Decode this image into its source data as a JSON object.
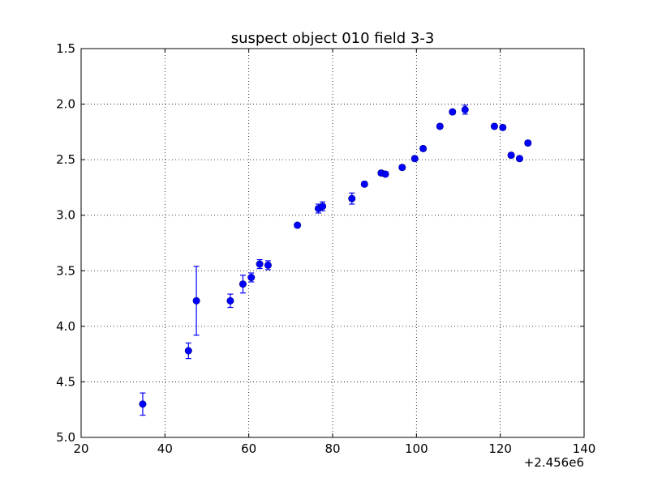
{
  "chart_data": {
    "type": "scatter",
    "title": "suspect object 010 field 3-3",
    "xlabel": "",
    "ylabel": "",
    "x_offset_label": "+2.456e6",
    "xlim": [
      20,
      140
    ],
    "ylim": [
      1.5,
      5.0
    ],
    "y_inverted": true,
    "grid": true,
    "x_ticks": [
      20,
      40,
      60,
      80,
      100,
      120,
      140
    ],
    "x_tick_labels": [
      "20",
      "40",
      "60",
      "80",
      "100",
      "120",
      "140"
    ],
    "y_ticks": [
      1.5,
      2.0,
      2.5,
      3.0,
      3.5,
      4.0,
      4.5,
      5.0
    ],
    "y_tick_labels": [
      "1.5",
      "2.0",
      "2.5",
      "3.0",
      "3.5",
      "4.0",
      "4.5",
      "5.0"
    ],
    "marker_color": "#0000ff",
    "errorbar_color": "#0000ff",
    "points": [
      {
        "x": 34.7,
        "y": 4.7,
        "err": 0.1
      },
      {
        "x": 45.6,
        "y": 4.22,
        "err": 0.07
      },
      {
        "x": 47.5,
        "y": 3.77,
        "err": 0.31
      },
      {
        "x": 55.6,
        "y": 3.77,
        "err": 0.06
      },
      {
        "x": 58.6,
        "y": 3.62,
        "err": 0.08
      },
      {
        "x": 60.6,
        "y": 3.56,
        "err": 0.04
      },
      {
        "x": 62.6,
        "y": 3.44,
        "err": 0.04
      },
      {
        "x": 64.6,
        "y": 3.45,
        "err": 0.04
      },
      {
        "x": 71.6,
        "y": 3.09,
        "err": 0.02
      },
      {
        "x": 76.6,
        "y": 2.94,
        "err": 0.04
      },
      {
        "x": 77.6,
        "y": 2.92,
        "err": 0.04
      },
      {
        "x": 84.6,
        "y": 2.85,
        "err": 0.05
      },
      {
        "x": 87.6,
        "y": 2.72,
        "err": 0.02
      },
      {
        "x": 91.6,
        "y": 2.62,
        "err": 0.02
      },
      {
        "x": 92.6,
        "y": 2.63,
        "err": 0.02
      },
      {
        "x": 96.6,
        "y": 2.57,
        "err": 0.02
      },
      {
        "x": 99.6,
        "y": 2.49,
        "err": 0.02
      },
      {
        "x": 101.6,
        "y": 2.4,
        "err": 0.02
      },
      {
        "x": 105.6,
        "y": 2.2,
        "err": 0.02
      },
      {
        "x": 108.6,
        "y": 2.07,
        "err": 0.02
      },
      {
        "x": 111.6,
        "y": 2.05,
        "err": 0.04
      },
      {
        "x": 118.6,
        "y": 2.2,
        "err": 0.02
      },
      {
        "x": 120.6,
        "y": 2.21,
        "err": 0.02
      },
      {
        "x": 122.6,
        "y": 2.46,
        "err": 0.02
      },
      {
        "x": 124.6,
        "y": 2.49,
        "err": 0.02
      },
      {
        "x": 126.6,
        "y": 2.35,
        "err": 0.02
      }
    ]
  }
}
